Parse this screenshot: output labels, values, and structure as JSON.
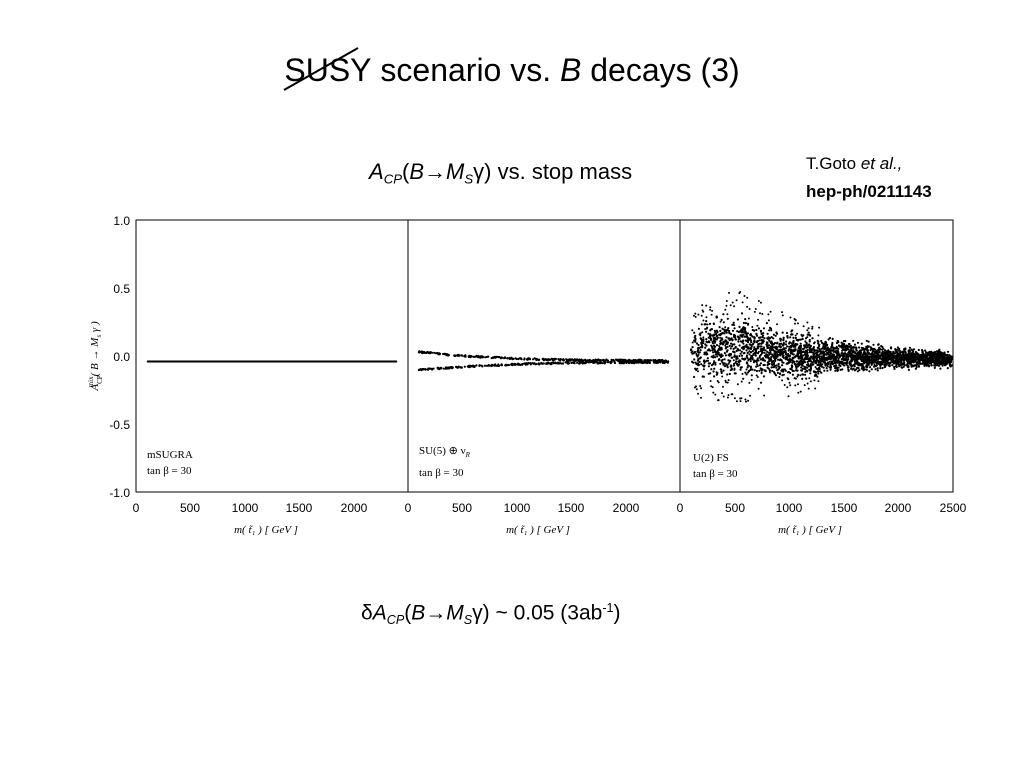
{
  "title": {
    "word": "SUSY",
    "rest": " scenario vs. ",
    "b": "B",
    "decays": " decays (3)"
  },
  "subtitle": {
    "a": "A",
    "cp": "CP",
    "open": "(",
    "b": "B",
    "arrow": "→",
    "m": "M",
    "s": "S",
    "gamma": "γ",
    "close": ") vs. stop mass"
  },
  "citation": {
    "author": "T.Goto ",
    "etal": "et al.,",
    "ref": "hep-ph/0211143"
  },
  "formula": {
    "delta": "δ",
    "a": "A",
    "cp": "CP",
    "open": "(",
    "b": "B",
    "arrow": "→",
    "m": "M",
    "s": "S",
    "gamma": "γ",
    "close": ") ~ 0.05 (3ab",
    "exp": "-1",
    "end": ")"
  },
  "figure": {
    "ylabel_pre": "A",
    "ylabel_sup": "mix",
    "ylabel_sub": "CP",
    "ylabel_rest": "( B → M",
    "ylabel_s": "s",
    "ylabel_gamma": " γ )",
    "xlabel": "m( t̃₁ )  [ GeV ]",
    "y_ticks": [
      "1.0",
      "0.5",
      "0.0",
      "-0.5",
      "-1.0"
    ],
    "panels": [
      {
        "model": "mSUGRA",
        "tanb": "tan β = 30",
        "x_ticks": [
          "0",
          "500",
          "1000",
          "1500",
          "2000"
        ]
      },
      {
        "model": "SU(5) ⊕ ν",
        "model_sub": "R",
        "tanb": "tan β = 30",
        "x_ticks": [
          "0",
          "500",
          "1000",
          "1500",
          "2000"
        ]
      },
      {
        "model": "U(2) FS",
        "tanb": "tan β = 30",
        "x_ticks": [
          "0",
          "500",
          "1000",
          "1500",
          "2000",
          "2500"
        ]
      }
    ]
  },
  "chart_data": {
    "type": "scatter",
    "ylabel": "A_CP^mix(B → M_s γ)",
    "xlabel": "m( t̃₁ )  [ GeV ]",
    "ylim": [
      -1.0,
      1.0
    ],
    "xlim": [
      0,
      2500
    ],
    "panels": [
      {
        "name": "mSUGRA",
        "note": "tan β = 30",
        "band": {
          "x_from": 100,
          "x_to": 2400,
          "y_center": -0.04,
          "y_half_width": 0.004
        }
      },
      {
        "name": "SU(5) ⊕ ν_R",
        "note": "tan β = 30",
        "band": [
          {
            "x": 100,
            "y_low": -0.1,
            "y_high": 0.03
          },
          {
            "x": 500,
            "y_low": -0.08,
            "y_high": 0.0
          },
          {
            "x": 1000,
            "y_low": -0.06,
            "y_high": -0.02
          },
          {
            "x": 1500,
            "y_low": -0.05,
            "y_high": -0.03
          },
          {
            "x": 2400,
            "y_low": -0.045,
            "y_high": -0.035
          }
        ]
      },
      {
        "name": "U(2) FS",
        "note": "tan β = 30",
        "band": [
          {
            "x": 100,
            "y_low": -0.3,
            "y_high": 0.35
          },
          {
            "x": 500,
            "y_low": -0.35,
            "y_high": 0.5
          },
          {
            "x": 1000,
            "y_low": -0.3,
            "y_high": 0.3
          },
          {
            "x": 1500,
            "y_low": -0.2,
            "y_high": 0.2
          },
          {
            "x": 2000,
            "y_low": -0.15,
            "y_high": 0.12
          },
          {
            "x": 2500,
            "y_low": -0.12,
            "y_high": 0.08
          }
        ]
      }
    ]
  }
}
